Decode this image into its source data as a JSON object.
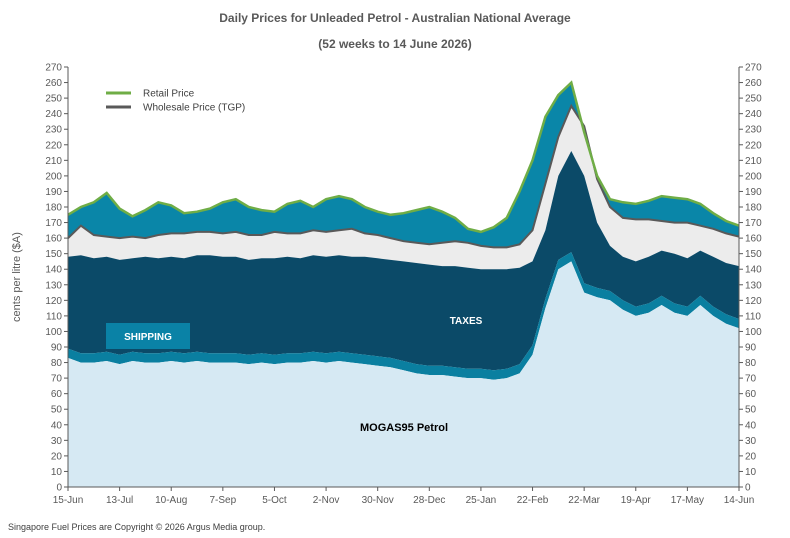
{
  "title": "Daily Prices for Unleaded Petrol - Australian National Average",
  "subtitle": "(52 weeks to 14 June 2026)",
  "footer": "Singapore Fuel Prices are Copyright © 2026 Argus Media group.",
  "colors": {
    "mogas": "#d6e9f3",
    "mogas_band": "#1f8fb5",
    "shipping": "#0a7fa0",
    "taxes": "#0b4a68",
    "margin_gap": "#ececec",
    "retail_margin": "#0a86a8",
    "retail_line": "#6fad46",
    "wholesale_line": "#595959",
    "shipping_box": "#0a82a6"
  },
  "chart_data": {
    "type": "area",
    "title": "Daily Prices for Unleaded Petrol - Australian National Average",
    "subtitle": "(52 weeks to 14 June 2026)",
    "ylabel": "cents per litre ($A)",
    "ylim": [
      0,
      270
    ],
    "yticks": [
      0,
      10,
      20,
      30,
      40,
      50,
      60,
      70,
      80,
      90,
      100,
      110,
      120,
      130,
      140,
      150,
      160,
      170,
      180,
      190,
      200,
      210,
      220,
      230,
      240,
      250,
      260,
      270
    ],
    "xtick_labels": [
      "15-Jun",
      "13-Jul",
      "10-Aug",
      "7-Sep",
      "5-Oct",
      "2-Nov",
      "30-Nov",
      "28-Dec",
      "25-Jan",
      "22-Feb",
      "22-Mar",
      "19-Apr",
      "17-May",
      "14-Jun"
    ],
    "xtick_weeks": [
      0,
      4,
      8,
      12,
      16,
      20,
      24,
      28,
      32,
      36,
      40,
      44,
      48,
      52
    ],
    "legend": [
      "Retail Price",
      "Wholesale Price (TGP)"
    ],
    "legend_position": "top-left",
    "area_labels": {
      "mogas": "MOGAS95 Petrol",
      "taxes": "TAXES",
      "shipping": "SHIPPING"
    },
    "grid": false,
    "weeks": [
      0,
      1,
      2,
      3,
      4,
      5,
      6,
      7,
      8,
      9,
      10,
      11,
      12,
      13,
      14,
      15,
      16,
      17,
      18,
      19,
      20,
      21,
      22,
      23,
      24,
      25,
      26,
      27,
      28,
      29,
      30,
      31,
      32,
      33,
      34,
      35,
      36,
      37,
      38,
      39,
      40,
      41,
      42,
      43,
      44,
      45,
      46,
      47,
      48,
      49,
      50,
      51,
      52
    ],
    "series": [
      {
        "name": "MOGAS95 Petrol",
        "values": [
          83,
          80,
          80,
          81,
          79,
          81,
          80,
          80,
          81,
          80,
          81,
          80,
          80,
          80,
          79,
          80,
          79,
          80,
          80,
          81,
          80,
          81,
          80,
          79,
          78,
          77,
          75,
          73,
          72,
          72,
          71,
          70,
          70,
          69,
          70,
          73,
          85,
          115,
          140,
          145,
          125,
          122,
          120,
          114,
          110,
          112,
          117,
          112,
          110,
          117,
          110,
          105,
          102
        ]
      },
      {
        "name": "Shipping",
        "values": [
          89,
          86,
          86,
          87,
          85,
          87,
          86,
          86,
          87,
          86,
          87,
          86,
          86,
          86,
          85,
          86,
          85,
          86,
          86,
          87,
          86,
          87,
          86,
          85,
          84,
          83,
          81,
          79,
          78,
          78,
          77,
          76,
          76,
          75,
          76,
          79,
          91,
          121,
          146,
          151,
          131,
          128,
          126,
          120,
          116,
          118,
          123,
          118,
          116,
          123,
          116,
          111,
          108
        ]
      },
      {
        "name": "Taxes",
        "values": [
          148,
          149,
          147,
          148,
          146,
          147,
          148,
          147,
          148,
          147,
          149,
          149,
          148,
          148,
          146,
          147,
          147,
          148,
          147,
          149,
          148,
          149,
          148,
          148,
          147,
          146,
          145,
          144,
          143,
          142,
          142,
          141,
          140,
          140,
          140,
          141,
          145,
          165,
          200,
          216,
          200,
          170,
          155,
          148,
          145,
          148,
          152,
          150,
          147,
          152,
          148,
          144,
          142
        ]
      },
      {
        "name": "Wholesale Price (TGP)",
        "values": [
          160,
          168,
          162,
          161,
          160,
          161,
          160,
          162,
          163,
          163,
          164,
          164,
          163,
          164,
          162,
          162,
          164,
          163,
          163,
          165,
          164,
          165,
          166,
          163,
          162,
          160,
          158,
          157,
          156,
          157,
          158,
          157,
          155,
          154,
          154,
          156,
          165,
          195,
          225,
          245,
          232,
          198,
          180,
          173,
          172,
          172,
          171,
          170,
          170,
          168,
          166,
          163,
          161
        ]
      },
      {
        "name": "Retail Price",
        "values": [
          175,
          180,
          183,
          189,
          179,
          174,
          178,
          183,
          181,
          176,
          177,
          179,
          183,
          185,
          180,
          178,
          177,
          182,
          184,
          180,
          185,
          187,
          185,
          180,
          177,
          175,
          176,
          178,
          180,
          177,
          173,
          166,
          164,
          167,
          173,
          190,
          210,
          238,
          252,
          260,
          228,
          200,
          185,
          183,
          182,
          184,
          187,
          186,
          185,
          182,
          176,
          171,
          168
        ]
      }
    ]
  }
}
